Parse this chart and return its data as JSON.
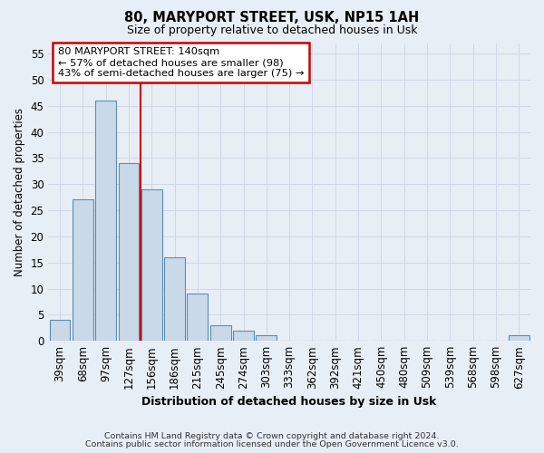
{
  "title": "80, MARYPORT STREET, USK, NP15 1AH",
  "subtitle": "Size of property relative to detached houses in Usk",
  "xlabel": "Distribution of detached houses by size in Usk",
  "ylabel": "Number of detached properties",
  "bar_labels": [
    "39sqm",
    "68sqm",
    "97sqm",
    "127sqm",
    "156sqm",
    "186sqm",
    "215sqm",
    "245sqm",
    "274sqm",
    "303sqm",
    "333sqm",
    "362sqm",
    "392sqm",
    "421sqm",
    "450sqm",
    "480sqm",
    "509sqm",
    "539sqm",
    "568sqm",
    "598sqm",
    "627sqm"
  ],
  "bar_values": [
    4,
    27,
    46,
    34,
    29,
    16,
    9,
    3,
    2,
    1,
    0,
    0,
    0,
    0,
    0,
    0,
    0,
    0,
    0,
    0,
    1
  ],
  "bar_color": "#c9d9e8",
  "bar_edge_color": "#5b8db8",
  "ylim": [
    0,
    57
  ],
  "yticks": [
    0,
    5,
    10,
    15,
    20,
    25,
    30,
    35,
    40,
    45,
    50,
    55
  ],
  "vline_color": "#cc0000",
  "vline_x_index": 3,
  "annotation_title": "80 MARYPORT STREET: 140sqm",
  "annotation_line1": "← 57% of detached houses are smaller (98)",
  "annotation_line2": "43% of semi-detached houses are larger (75) →",
  "annotation_box_color": "#ffffff",
  "annotation_box_edge": "#cc0000",
  "grid_color": "#d0d8e8",
  "bg_color": "#e8eef5",
  "footnote1": "Contains HM Land Registry data © Crown copyright and database right 2024.",
  "footnote2": "Contains public sector information licensed under the Open Government Licence v3.0."
}
